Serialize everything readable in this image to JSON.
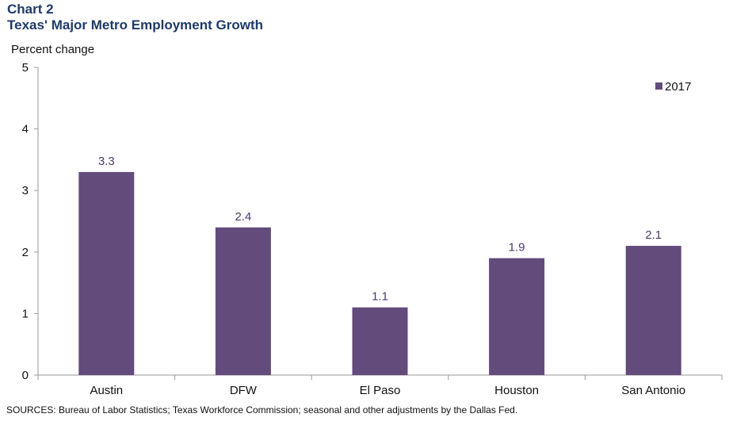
{
  "header": {
    "chart_number": "Chart 2",
    "title": "Texas' Major Metro Employment Growth"
  },
  "footer": {
    "sources": "SOURCES: Bureau of Labor Statistics; Texas Workforce Commission; seasonal and other adjustments by the Dallas Fed."
  },
  "colors": {
    "bar": "#634b7b",
    "data_label": "#4d3a6a",
    "title": "#1f3a68",
    "axis": "#999999"
  },
  "chart_data": {
    "type": "bar",
    "title": "Texas' Major Metro Employment Growth",
    "ylabel": "Percent change",
    "xlabel": "",
    "categories": [
      "Austin",
      "DFW",
      "El Paso",
      "Houston",
      "San Antonio"
    ],
    "series": [
      {
        "name": "2017",
        "values": [
          3.3,
          2.4,
          1.1,
          1.9,
          2.1
        ]
      }
    ],
    "data_labels": [
      "3.3",
      "2.4",
      "1.1",
      "1.9",
      "2.1"
    ],
    "ylim": [
      0,
      5
    ],
    "yticks": [
      0,
      1,
      2,
      3,
      4,
      5
    ],
    "grid": false,
    "legend_position": "top-right"
  }
}
